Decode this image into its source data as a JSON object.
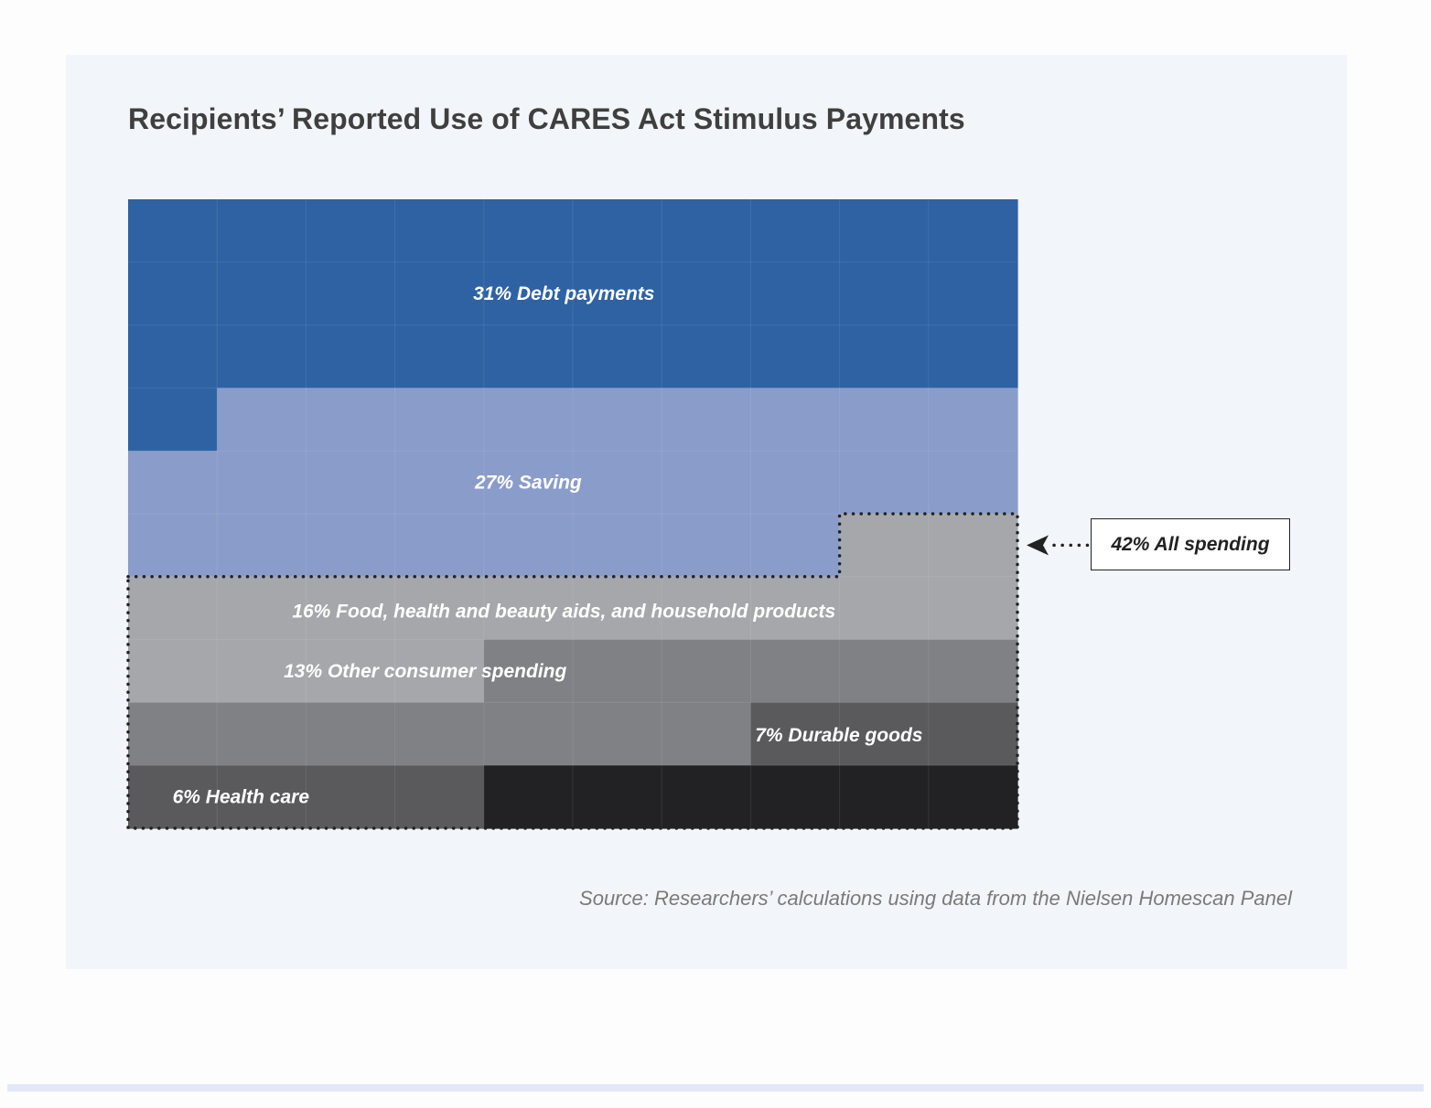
{
  "title": "Recipients’ Reported Use of CARES Act Stimulus Payments",
  "source": "Source: Researchers’ calculations using data from the Nielsen Homescan Panel",
  "chart_data": {
    "type": "waffle",
    "grid": {
      "columns": 10,
      "rows": 10,
      "fill_order": "row-major from top-left"
    },
    "categories": [
      {
        "name": "Debt payments",
        "value": 31,
        "display": "31%  Debt payments",
        "color": "#2e62a3",
        "text_color": "#ffffff"
      },
      {
        "name": "Saving",
        "value": 27,
        "display": "27%  Saving",
        "color": "#8a9cca",
        "text_color": "#ffffff"
      },
      {
        "name": "Food, health and beauty aids, and household products",
        "value": 16,
        "display": "16%  Food, health and beauty aids, and household products",
        "color": "#a6a7aa",
        "text_color": "#ffffff"
      },
      {
        "name": "Other consumer spending",
        "value": 13,
        "display": "13%  Other consumer spending",
        "color": "#808184",
        "text_color": "#ffffff"
      },
      {
        "name": "Durable goods",
        "value": 7,
        "display": "7%  Durable goods",
        "color": "#5a5a5d",
        "text_color": "#ffffff"
      },
      {
        "name": "Health care",
        "value": 6,
        "display": "6%  Health care",
        "color": "#222224",
        "text_color": "#ffffff"
      }
    ],
    "group_callout": {
      "label": "42%  All spending",
      "value": 42,
      "members": [
        "Food, health and beauty aids, and household products",
        "Other consumer spending",
        "Durable goods",
        "Health care"
      ]
    }
  }
}
